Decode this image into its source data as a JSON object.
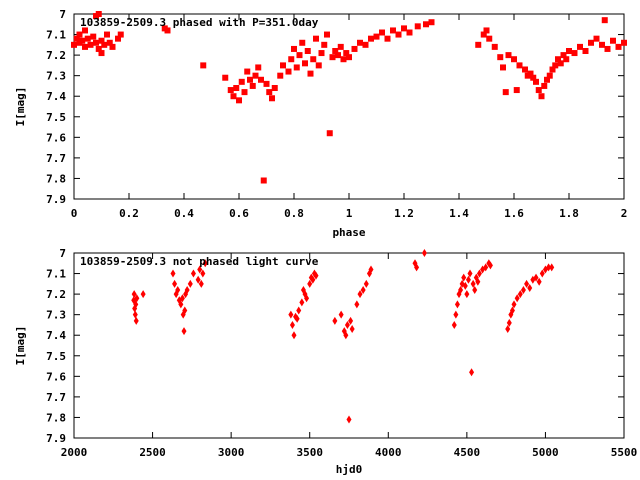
{
  "chart_data": [
    {
      "type": "scatter",
      "title": "103859-2509.3 phased with P=351.0day",
      "xlabel": "phase",
      "ylabel": "I[mag]",
      "xlim": [
        0,
        2
      ],
      "ylim": [
        7.9,
        7.0
      ],
      "y_inverted": true,
      "xticks": [
        "0",
        "0.2",
        "0.4",
        "0.6",
        "0.8",
        "1",
        "1.2",
        "1.4",
        "1.6",
        "1.8",
        "2"
      ],
      "xtick_values": [
        0,
        0.2,
        0.4,
        0.6,
        0.8,
        1.0,
        1.2,
        1.4,
        1.6,
        1.8,
        2.0
      ],
      "yticks": [
        "7",
        "7.1",
        "7.2",
        "7.3",
        "7.4",
        "7.5",
        "7.6",
        "7.7",
        "7.8",
        "7.9"
      ],
      "ytick_values": [
        7.0,
        7.1,
        7.2,
        7.3,
        7.4,
        7.5,
        7.6,
        7.7,
        7.8,
        7.9
      ],
      "grid": false,
      "marker_color": "#ff0000",
      "points": [
        [
          0.0,
          7.15
        ],
        [
          0.01,
          7.12
        ],
        [
          0.02,
          7.1
        ],
        [
          0.02,
          7.14
        ],
        [
          0.03,
          7.13
        ],
        [
          0.04,
          7.08
        ],
        [
          0.04,
          7.16
        ],
        [
          0.05,
          7.12
        ],
        [
          0.06,
          7.15
        ],
        [
          0.07,
          7.11
        ],
        [
          0.08,
          7.14
        ],
        [
          0.08,
          7.01
        ],
        [
          0.09,
          7.0
        ],
        [
          0.09,
          7.17
        ],
        [
          0.1,
          7.13
        ],
        [
          0.1,
          7.19
        ],
        [
          0.11,
          7.15
        ],
        [
          0.12,
          7.1
        ],
        [
          0.13,
          7.14
        ],
        [
          0.14,
          7.16
        ],
        [
          0.16,
          7.12
        ],
        [
          0.17,
          7.1
        ],
        [
          0.33,
          7.07
        ],
        [
          0.34,
          7.08
        ],
        [
          0.47,
          7.25
        ],
        [
          0.55,
          7.31
        ],
        [
          0.57,
          7.37
        ],
        [
          0.58,
          7.4
        ],
        [
          0.59,
          7.36
        ],
        [
          0.6,
          7.42
        ],
        [
          0.61,
          7.33
        ],
        [
          0.62,
          7.38
        ],
        [
          0.63,
          7.28
        ],
        [
          0.64,
          7.32
        ],
        [
          0.65,
          7.35
        ],
        [
          0.66,
          7.3
        ],
        [
          0.67,
          7.26
        ],
        [
          0.68,
          7.32
        ],
        [
          0.69,
          7.81
        ],
        [
          0.7,
          7.34
        ],
        [
          0.71,
          7.38
        ],
        [
          0.72,
          7.41
        ],
        [
          0.73,
          7.36
        ],
        [
          0.75,
          7.3
        ],
        [
          0.76,
          7.25
        ],
        [
          0.78,
          7.28
        ],
        [
          0.79,
          7.22
        ],
        [
          0.8,
          7.17
        ],
        [
          0.81,
          7.26
        ],
        [
          0.82,
          7.2
        ],
        [
          0.83,
          7.14
        ],
        [
          0.84,
          7.24
        ],
        [
          0.85,
          7.18
        ],
        [
          0.86,
          7.29
        ],
        [
          0.87,
          7.22
        ],
        [
          0.88,
          7.12
        ],
        [
          0.89,
          7.25
        ],
        [
          0.9,
          7.19
        ],
        [
          0.91,
          7.15
        ],
        [
          0.92,
          7.1
        ],
        [
          0.93,
          7.58
        ],
        [
          0.94,
          7.21
        ],
        [
          0.95,
          7.18
        ],
        [
          0.96,
          7.2
        ],
        [
          0.97,
          7.16
        ],
        [
          0.98,
          7.22
        ],
        [
          0.99,
          7.19
        ],
        [
          1.0,
          7.21
        ],
        [
          1.02,
          7.17
        ],
        [
          1.04,
          7.14
        ],
        [
          1.06,
          7.15
        ],
        [
          1.08,
          7.12
        ],
        [
          1.1,
          7.11
        ],
        [
          1.12,
          7.09
        ],
        [
          1.14,
          7.12
        ],
        [
          1.16,
          7.08
        ],
        [
          1.18,
          7.1
        ],
        [
          1.2,
          7.07
        ],
        [
          1.22,
          7.09
        ],
        [
          1.25,
          7.06
        ],
        [
          1.28,
          7.05
        ],
        [
          1.3,
          7.04
        ],
        [
          1.47,
          7.15
        ],
        [
          1.49,
          7.1
        ],
        [
          1.5,
          7.08
        ],
        [
          1.51,
          7.12
        ],
        [
          1.53,
          7.16
        ],
        [
          1.55,
          7.21
        ],
        [
          1.56,
          7.26
        ],
        [
          1.57,
          7.38
        ],
        [
          1.58,
          7.2
        ],
        [
          1.6,
          7.22
        ],
        [
          1.61,
          7.37
        ],
        [
          1.62,
          7.25
        ],
        [
          1.64,
          7.27
        ],
        [
          1.65,
          7.3
        ],
        [
          1.66,
          7.29
        ],
        [
          1.67,
          7.31
        ],
        [
          1.68,
          7.33
        ],
        [
          1.69,
          7.37
        ],
        [
          1.7,
          7.4
        ],
        [
          1.71,
          7.35
        ],
        [
          1.72,
          7.32
        ],
        [
          1.73,
          7.3
        ],
        [
          1.74,
          7.27
        ],
        [
          1.75,
          7.25
        ],
        [
          1.76,
          7.22
        ],
        [
          1.77,
          7.24
        ],
        [
          1.78,
          7.2
        ],
        [
          1.79,
          7.22
        ],
        [
          1.8,
          7.18
        ],
        [
          1.82,
          7.19
        ],
        [
          1.84,
          7.16
        ],
        [
          1.86,
          7.18
        ],
        [
          1.88,
          7.14
        ],
        [
          1.9,
          7.12
        ],
        [
          1.92,
          7.15
        ],
        [
          1.93,
          7.03
        ],
        [
          1.94,
          7.17
        ],
        [
          1.96,
          7.13
        ],
        [
          1.98,
          7.16
        ],
        [
          2.0,
          7.14
        ]
      ]
    },
    {
      "type": "scatter",
      "title": "103859-2509.3 not phased light curve",
      "xlabel": "hjd0",
      "ylabel": "I[mag]",
      "xlim": [
        2000,
        5500
      ],
      "ylim": [
        7.9,
        7.0
      ],
      "y_inverted": true,
      "xticks": [
        "2000",
        "2500",
        "3000",
        "3500",
        "4000",
        "4500",
        "5000",
        "5500"
      ],
      "xtick_values": [
        2000,
        2500,
        3000,
        3500,
        4000,
        4500,
        5000,
        5500
      ],
      "yticks": [
        "7",
        "7.1",
        "7.2",
        "7.3",
        "7.4",
        "7.5",
        "7.6",
        "7.7",
        "7.8",
        "7.9"
      ],
      "ytick_values": [
        7.0,
        7.1,
        7.2,
        7.3,
        7.4,
        7.5,
        7.6,
        7.7,
        7.8,
        7.9
      ],
      "grid": false,
      "marker_color": "#ff0000",
      "points": [
        [
          2380,
          7.23
        ],
        [
          2383,
          7.2
        ],
        [
          2386,
          7.27
        ],
        [
          2390,
          7.3
        ],
        [
          2393,
          7.25
        ],
        [
          2396,
          7.33
        ],
        [
          2400,
          7.22
        ],
        [
          2440,
          7.2
        ],
        [
          2630,
          7.1
        ],
        [
          2640,
          7.15
        ],
        [
          2650,
          7.2
        ],
        [
          2660,
          7.18
        ],
        [
          2670,
          7.23
        ],
        [
          2680,
          7.25
        ],
        [
          2690,
          7.22
        ],
        [
          2695,
          7.3
        ],
        [
          2700,
          7.38
        ],
        [
          2705,
          7.28
        ],
        [
          2710,
          7.2
        ],
        [
          2720,
          7.18
        ],
        [
          2740,
          7.15
        ],
        [
          2760,
          7.1
        ],
        [
          2790,
          7.13
        ],
        [
          2800,
          7.08
        ],
        [
          2810,
          7.15
        ],
        [
          2820,
          7.1
        ],
        [
          2835,
          7.05
        ],
        [
          3380,
          7.3
        ],
        [
          3390,
          7.35
        ],
        [
          3400,
          7.4
        ],
        [
          3410,
          7.31
        ],
        [
          3420,
          7.32
        ],
        [
          3430,
          7.28
        ],
        [
          3450,
          7.24
        ],
        [
          3460,
          7.18
        ],
        [
          3470,
          7.2
        ],
        [
          3480,
          7.22
        ],
        [
          3500,
          7.15
        ],
        [
          3510,
          7.12
        ],
        [
          3520,
          7.13
        ],
        [
          3530,
          7.1
        ],
        [
          3540,
          7.11
        ],
        [
          3660,
          7.33
        ],
        [
          3700,
          7.3
        ],
        [
          3720,
          7.38
        ],
        [
          3730,
          7.4
        ],
        [
          3740,
          7.35
        ],
        [
          3750,
          7.81
        ],
        [
          3760,
          7.33
        ],
        [
          3770,
          7.37
        ],
        [
          3800,
          7.25
        ],
        [
          3820,
          7.2
        ],
        [
          3840,
          7.18
        ],
        [
          3860,
          7.15
        ],
        [
          3880,
          7.1
        ],
        [
          3890,
          7.08
        ],
        [
          4170,
          7.05
        ],
        [
          4180,
          7.07
        ],
        [
          4230,
          7.0
        ],
        [
          4420,
          7.35
        ],
        [
          4430,
          7.3
        ],
        [
          4440,
          7.25
        ],
        [
          4450,
          7.2
        ],
        [
          4460,
          7.18
        ],
        [
          4470,
          7.15
        ],
        [
          4480,
          7.12
        ],
        [
          4490,
          7.16
        ],
        [
          4500,
          7.2
        ],
        [
          4510,
          7.13
        ],
        [
          4520,
          7.1
        ],
        [
          4530,
          7.58
        ],
        [
          4540,
          7.15
        ],
        [
          4550,
          7.18
        ],
        [
          4560,
          7.12
        ],
        [
          4570,
          7.14
        ],
        [
          4580,
          7.1
        ],
        [
          4600,
          7.08
        ],
        [
          4620,
          7.07
        ],
        [
          4640,
          7.05
        ],
        [
          4650,
          7.06
        ],
        [
          4760,
          7.37
        ],
        [
          4770,
          7.34
        ],
        [
          4780,
          7.3
        ],
        [
          4790,
          7.28
        ],
        [
          4800,
          7.25
        ],
        [
          4820,
          7.22
        ],
        [
          4840,
          7.2
        ],
        [
          4860,
          7.18
        ],
        [
          4880,
          7.15
        ],
        [
          4900,
          7.17
        ],
        [
          4920,
          7.13
        ],
        [
          4940,
          7.12
        ],
        [
          4960,
          7.14
        ],
        [
          4980,
          7.1
        ],
        [
          5000,
          7.08
        ],
        [
          5020,
          7.07
        ],
        [
          5040,
          7.07
        ]
      ]
    }
  ]
}
